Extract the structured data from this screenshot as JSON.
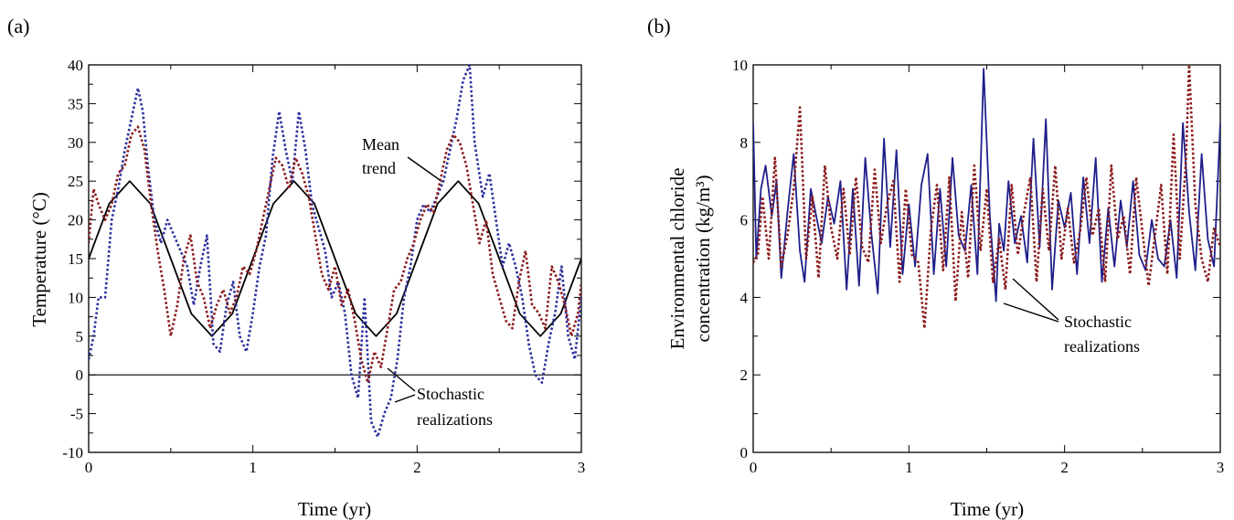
{
  "chart_data": [
    {
      "panel_label": "(a)",
      "type": "line",
      "xlabel": "Time (yr)",
      "ylabel": "Temperature (°C)",
      "xlim": [
        0,
        3
      ],
      "ylim": [
        -10,
        40
      ],
      "x_ticks": [
        0,
        1,
        2,
        3
      ],
      "y_ticks": [
        -10,
        -5,
        0,
        5,
        10,
        15,
        20,
        25,
        30,
        35,
        40
      ],
      "zero_line": true,
      "colors": {
        "mean": "#000000",
        "blue": "#2b2f9e",
        "red": "#8b1a1a"
      },
      "series": [
        {
          "style": "solid",
          "color": "#000000",
          "x": [
            0,
            0.125,
            0.25,
            0.375,
            0.5,
            0.625,
            0.75,
            0.875,
            1.0,
            1.125,
            1.25,
            1.375,
            1.5,
            1.625,
            1.75,
            1.875,
            2.0,
            2.125,
            2.25,
            2.375,
            2.5,
            2.625,
            2.75,
            2.875,
            3.0
          ],
          "values": [
            15,
            22.1,
            25,
            22.1,
            15,
            7.9,
            5,
            7.9,
            15,
            22.1,
            25,
            22.1,
            15,
            7.9,
            5,
            7.9,
            15,
            22.1,
            25,
            22.1,
            15,
            7.9,
            5,
            7.9,
            15
          ]
        },
        {
          "style": "dotted",
          "color": "#2b2f9e",
          "x": [
            0,
            0.03,
            0.06,
            0.1,
            0.14,
            0.18,
            0.22,
            0.26,
            0.3,
            0.33,
            0.36,
            0.4,
            0.44,
            0.48,
            0.52,
            0.56,
            0.6,
            0.64,
            0.68,
            0.72,
            0.76,
            0.8,
            0.84,
            0.88,
            0.92,
            0.96,
            1.0,
            1.04,
            1.08,
            1.12,
            1.16,
            1.2,
            1.24,
            1.28,
            1.32,
            1.36,
            1.4,
            1.44,
            1.48,
            1.52,
            1.56,
            1.6,
            1.64,
            1.68,
            1.72,
            1.76,
            1.8,
            1.84,
            1.88,
            1.92,
            1.96,
            2.0,
            2.04,
            2.08,
            2.12,
            2.16,
            2.2,
            2.24,
            2.28,
            2.32,
            2.35,
            2.4,
            2.44,
            2.48,
            2.52,
            2.56,
            2.6,
            2.64,
            2.68,
            2.72,
            2.76,
            2.8,
            2.84,
            2.88,
            2.92,
            2.96,
            3.0
          ],
          "values": [
            2,
            5,
            10,
            10,
            20,
            24,
            29,
            33,
            37,
            34,
            27,
            20,
            17,
            20,
            18,
            16,
            14,
            9,
            14,
            18,
            4,
            3,
            9,
            12,
            5,
            3,
            8,
            14,
            18,
            28,
            34,
            29,
            25,
            34,
            29,
            22,
            19,
            16,
            10,
            12,
            8,
            0,
            -3,
            10,
            -6,
            -8,
            -5,
            -3,
            2,
            10,
            14,
            20,
            22,
            21,
            23,
            25,
            29,
            33,
            38,
            40,
            30,
            23,
            26,
            20,
            14,
            17,
            14,
            10,
            4,
            0,
            -1,
            4,
            8,
            14,
            5,
            2,
            10
          ]
        },
        {
          "style": "dotted",
          "color": "#8b1a1a",
          "x": [
            0,
            0.03,
            0.06,
            0.1,
            0.14,
            0.18,
            0.22,
            0.26,
            0.3,
            0.34,
            0.38,
            0.42,
            0.46,
            0.5,
            0.54,
            0.58,
            0.62,
            0.66,
            0.7,
            0.74,
            0.78,
            0.82,
            0.86,
            0.9,
            0.94,
            0.98,
            1.02,
            1.06,
            1.1,
            1.14,
            1.18,
            1.22,
            1.26,
            1.3,
            1.34,
            1.38,
            1.42,
            1.46,
            1.5,
            1.54,
            1.58,
            1.62,
            1.66,
            1.7,
            1.74,
            1.78,
            1.82,
            1.86,
            1.9,
            1.94,
            1.98,
            2.02,
            2.06,
            2.1,
            2.14,
            2.18,
            2.22,
            2.26,
            2.3,
            2.34,
            2.38,
            2.42,
            2.46,
            2.5,
            2.54,
            2.58,
            2.62,
            2.66,
            2.7,
            2.74,
            2.78,
            2.82,
            2.86,
            2.9,
            2.94,
            2.98,
            3.0
          ],
          "values": [
            17,
            24,
            22,
            20,
            22,
            26,
            27,
            31,
            32,
            29,
            22,
            16,
            11,
            5,
            9,
            15,
            18,
            12,
            10,
            6,
            9,
            11,
            8,
            10,
            14,
            13,
            16,
            20,
            24,
            28,
            27,
            24,
            28,
            26,
            23,
            18,
            13,
            11,
            14,
            9,
            11,
            7,
            2,
            -1,
            3,
            1,
            6,
            11,
            12,
            15,
            17,
            20,
            22,
            21,
            25,
            29,
            31,
            30,
            27,
            22,
            17,
            20,
            13,
            10,
            7,
            6,
            12,
            16,
            9,
            8,
            6,
            14,
            12,
            9,
            5,
            8,
            12
          ]
        }
      ],
      "annotations": [
        {
          "text": "Mean",
          "line": 1
        },
        {
          "text": "trend",
          "line": 2
        },
        {
          "text": "Stochastic",
          "line": 1
        },
        {
          "text": "realizations",
          "line": 2
        }
      ]
    },
    {
      "panel_label": "(b)",
      "type": "line",
      "xlabel": "Time (yr)",
      "ylabel_line1": "Environmental chloride",
      "ylabel_line2": "concentration (kg/m³)",
      "xlim": [
        0,
        3
      ],
      "ylim": [
        0,
        10
      ],
      "x_ticks": [
        0,
        1,
        2,
        3
      ],
      "y_ticks": [
        0,
        2,
        4,
        6,
        8,
        10
      ],
      "colors": {
        "blue": "#1f1f8a",
        "red": "#8b1a1a"
      },
      "series": [
        {
          "style": "solid",
          "color": "#1f1f8a",
          "x": [
            0,
            0.02,
            0.05,
            0.08,
            0.12,
            0.15,
            0.18,
            0.22,
            0.26,
            0.3,
            0.33,
            0.37,
            0.4,
            0.44,
            0.48,
            0.52,
            0.56,
            0.6,
            0.64,
            0.68,
            0.72,
            0.76,
            0.8,
            0.84,
            0.88,
            0.92,
            0.96,
            1.0,
            1.04,
            1.08,
            1.12,
            1.16,
            1.2,
            1.24,
            1.28,
            1.32,
            1.36,
            1.4,
            1.44,
            1.48,
            1.52,
            1.56,
            1.58,
            1.61,
            1.64,
            1.68,
            1.72,
            1.76,
            1.8,
            1.84,
            1.88,
            1.92,
            1.96,
            2.0,
            2.04,
            2.08,
            2.12,
            2.16,
            2.2,
            2.24,
            2.28,
            2.32,
            2.36,
            2.4,
            2.44,
            2.48,
            2.52,
            2.56,
            2.6,
            2.64,
            2.68,
            2.72,
            2.76,
            2.8,
            2.84,
            2.88,
            2.92,
            2.96,
            3.0
          ],
          "values": [
            8.5,
            5.0,
            6.8,
            7.4,
            6.1,
            7.0,
            4.5,
            6.2,
            7.7,
            5.2,
            4.4,
            6.8,
            6.2,
            5.4,
            6.6,
            5.9,
            7.0,
            4.2,
            6.8,
            4.3,
            7.6,
            5.6,
            4.1,
            8.1,
            5.3,
            7.8,
            4.6,
            6.4,
            4.8,
            6.9,
            7.7,
            4.6,
            6.8,
            4.8,
            7.6,
            5.6,
            5.2,
            6.9,
            4.6,
            9.9,
            6.1,
            3.9,
            5.9,
            5.2,
            7.0,
            5.4,
            6.1,
            4.9,
            8.1,
            5.3,
            8.6,
            4.2,
            6.5,
            5.8,
            6.7,
            4.6,
            7.1,
            5.4,
            7.6,
            4.4,
            6.3,
            4.8,
            6.5,
            5.3,
            7.0,
            5.1,
            4.7,
            6.0,
            5.0,
            4.8,
            6.0,
            4.5,
            8.5,
            6.2,
            4.7,
            7.7,
            5.5,
            4.8,
            8.5
          ]
        },
        {
          "style": "dotted",
          "color": "#8b1a1a",
          "x": [
            0,
            0.03,
            0.06,
            0.1,
            0.14,
            0.18,
            0.22,
            0.26,
            0.3,
            0.34,
            0.38,
            0.42,
            0.46,
            0.5,
            0.54,
            0.58,
            0.62,
            0.66,
            0.7,
            0.74,
            0.78,
            0.82,
            0.86,
            0.9,
            0.94,
            0.98,
            1.02,
            1.06,
            1.1,
            1.14,
            1.18,
            1.22,
            1.26,
            1.3,
            1.34,
            1.38,
            1.42,
            1.46,
            1.5,
            1.54,
            1.58,
            1.62,
            1.66,
            1.7,
            1.74,
            1.78,
            1.82,
            1.86,
            1.9,
            1.94,
            1.98,
            2.02,
            2.06,
            2.1,
            2.14,
            2.18,
            2.22,
            2.26,
            2.3,
            2.34,
            2.38,
            2.42,
            2.46,
            2.5,
            2.54,
            2.58,
            2.62,
            2.66,
            2.7,
            2.74,
            2.78,
            2.8,
            2.84,
            2.88,
            2.92,
            2.96,
            3.0
          ],
          "values": [
            4.9,
            5.1,
            6.6,
            5.0,
            7.6,
            4.8,
            5.6,
            6.8,
            8.9,
            5.0,
            6.6,
            4.5,
            7.4,
            5.8,
            5.0,
            6.8,
            5.1,
            7.1,
            5.3,
            4.9,
            7.3,
            5.4,
            6.4,
            7.0,
            4.4,
            6.8,
            5.1,
            4.9,
            3.2,
            5.7,
            6.9,
            4.7,
            7.1,
            3.9,
            6.2,
            4.5,
            7.4,
            5.2,
            6.8,
            4.4,
            5.5,
            4.2,
            6.9,
            5.1,
            6.2,
            7.1,
            4.4,
            6.8,
            5.2,
            7.4,
            5.0,
            6.3,
            4.9,
            5.7,
            7.1,
            5.6,
            6.3,
            4.4,
            7.4,
            5.5,
            6.1,
            4.6,
            7.1,
            5.7,
            4.3,
            5.6,
            6.9,
            4.6,
            8.2,
            5.0,
            7.6,
            10.0,
            6.4,
            5.0,
            4.4,
            5.8,
            5.3
          ]
        }
      ],
      "annotations": [
        {
          "text": "Stochastic",
          "line": 1
        },
        {
          "text": "realizations",
          "line": 2
        }
      ]
    }
  ]
}
